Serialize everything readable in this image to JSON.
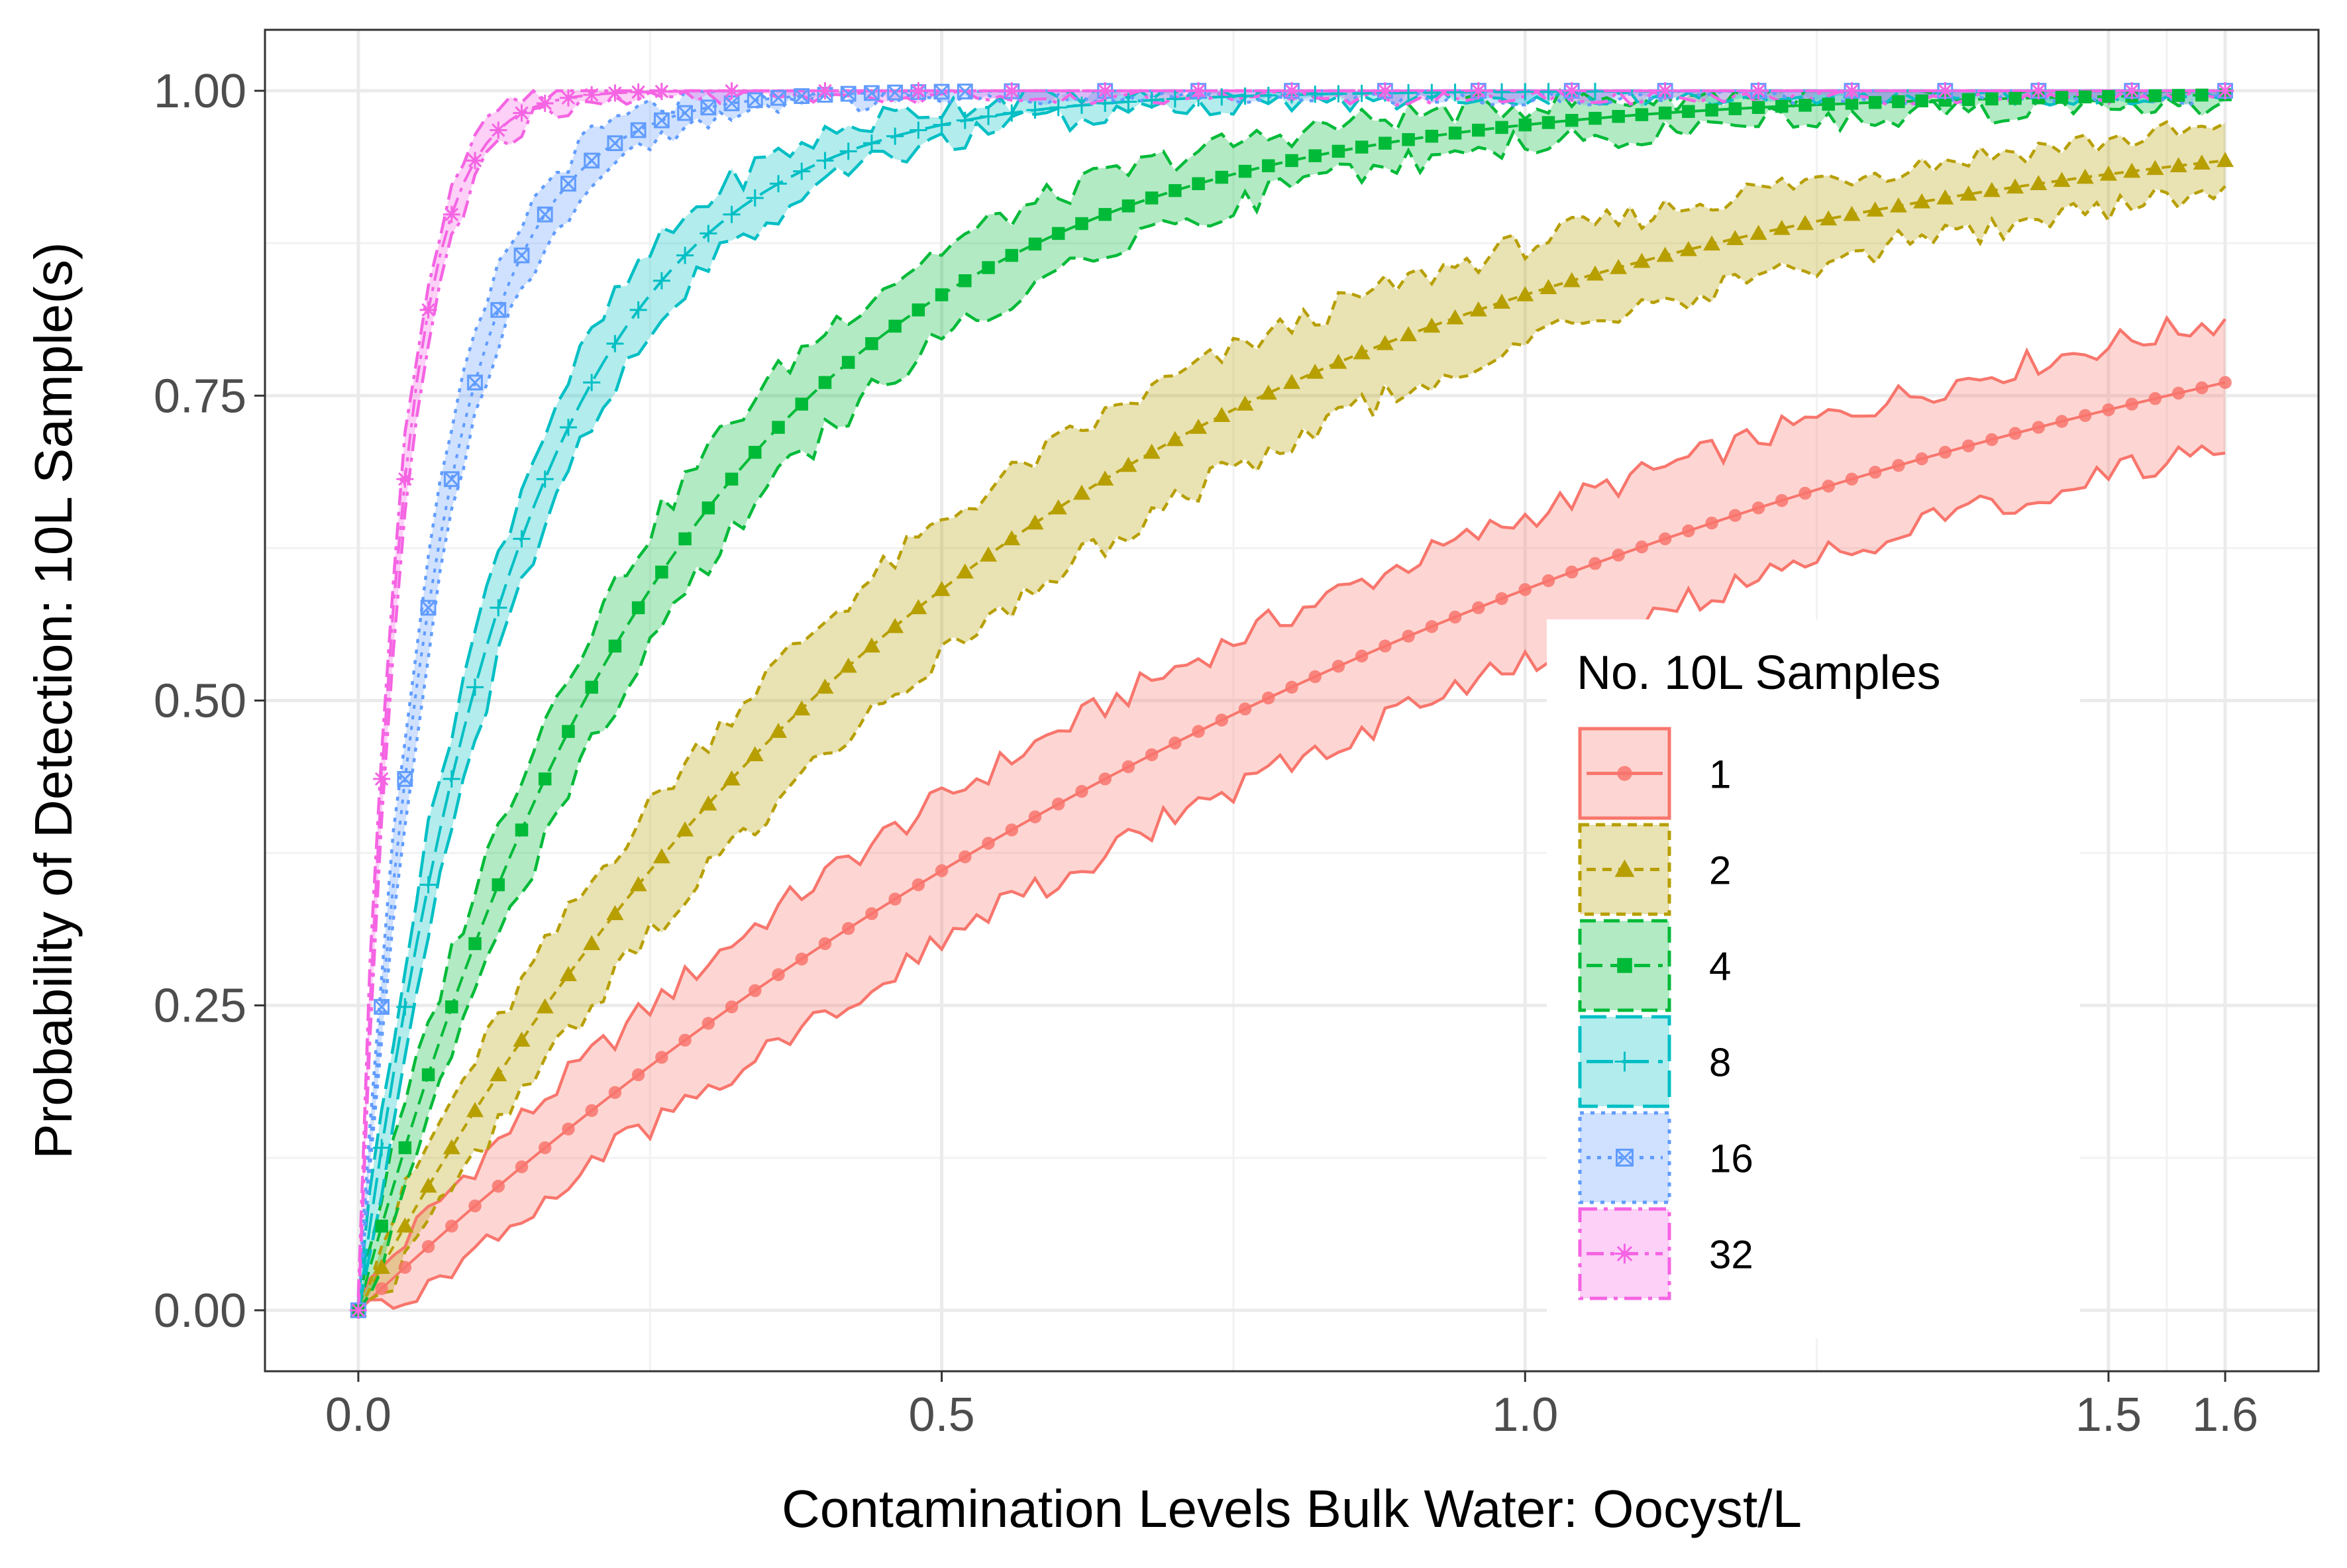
{
  "chart_data": {
    "type": "line",
    "xlabel": "Contamination Levels Bulk Water: Oocyst/L",
    "ylabel": "Probability of Detection: 10L Sample(s)",
    "xlim": [
      -0.08,
      1.68
    ],
    "ylim": [
      -0.05,
      1.05
    ],
    "x_ticks": [
      0.0,
      0.5,
      1.0,
      1.5,
      1.6
    ],
    "x_tick_labels": [
      "0.0",
      "0.5",
      "1.0",
      "1.5",
      "1.6"
    ],
    "x_minor_ticks": [
      0.25,
      0.75,
      1.25,
      1.55
    ],
    "y_ticks": [
      0.0,
      0.25,
      0.5,
      0.75,
      1.0
    ],
    "y_tick_labels": [
      "0.00",
      "0.25",
      "0.50",
      "0.75",
      "1.00"
    ],
    "grid": true,
    "legend": {
      "title": "No. 10L Samples",
      "placement": "right-center inside"
    },
    "series": [
      {
        "name": "1",
        "samples": 1,
        "color": "#F8766D",
        "fill": "#F8766D",
        "marker": "circle",
        "dash": "solid",
        "band_halfwidth": 0.055
      },
      {
        "name": "2",
        "samples": 2,
        "color": "#B79F00",
        "fill": "#B79F00",
        "marker": "triangle",
        "dash": "dashed-short",
        "band_halfwidth": 0.05
      },
      {
        "name": "4",
        "samples": 4,
        "color": "#00BA38",
        "fill": "#00BA38",
        "marker": "square",
        "dash": "dashed",
        "band_halfwidth": 0.045
      },
      {
        "name": "8",
        "samples": 8,
        "color": "#00BFC4",
        "fill": "#00BFC4",
        "marker": "plus",
        "dash": "long-dash",
        "band_halfwidth": 0.04
      },
      {
        "name": "16",
        "samples": 16,
        "color": "#619CFF",
        "fill": "#619CFF",
        "marker": "boxed-x",
        "dash": "dotted",
        "band_halfwidth": 0.035
      },
      {
        "name": "32",
        "samples": 32,
        "color": "#F564E3",
        "fill": "#F564E3",
        "marker": "asterisk",
        "dash": "dash-dot",
        "band_halfwidth": 0.03
      }
    ],
    "curve_model": "P = 1 - exp(-samples * 10 * 0.0894 * x)",
    "x_range": [
      0.0,
      1.6
    ],
    "x_step": 0.01
  }
}
